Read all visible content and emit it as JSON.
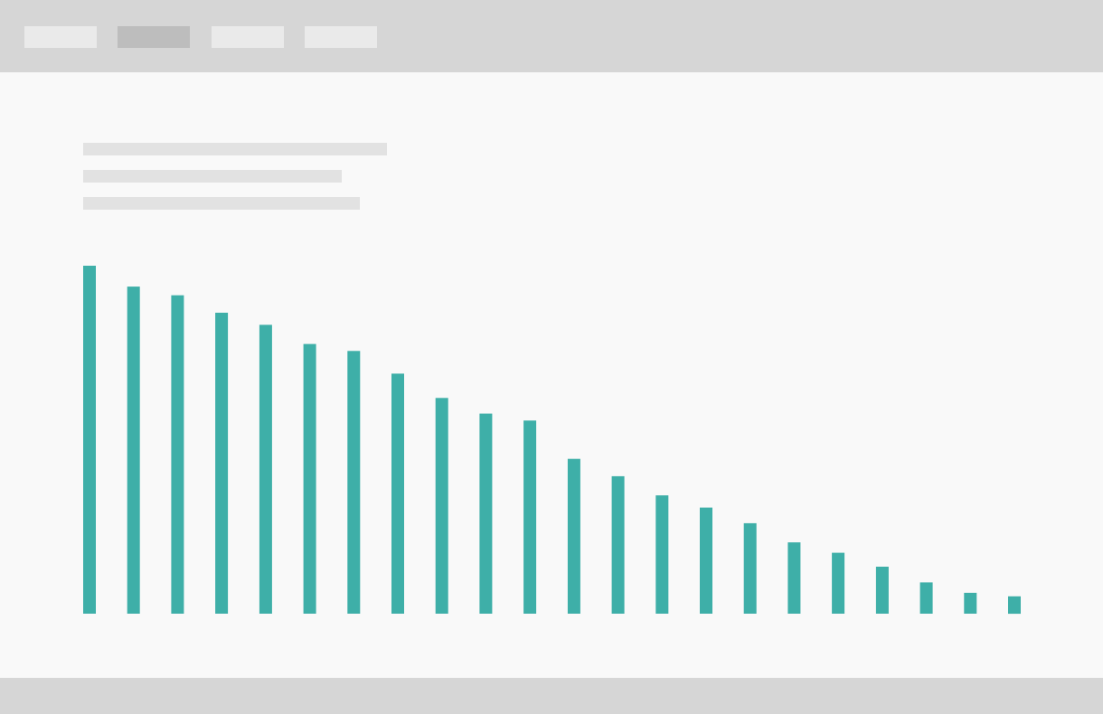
{
  "nav": {
    "tabs": [
      {
        "active": false
      },
      {
        "active": true
      },
      {
        "active": false
      },
      {
        "active": false
      }
    ]
  },
  "colors": {
    "topbar": "#d6d6d6",
    "tab": "#eaeaea",
    "tab_active": "#bdbdbd",
    "background": "#f9f9f9",
    "placeholder_text": "#e2e2e2",
    "bar": "#3eafa8",
    "footer": "#d6d6d6"
  },
  "chart_data": {
    "type": "bar",
    "title": "",
    "xlabel": "",
    "ylabel": "",
    "ylim": [
      0,
      100
    ],
    "grid": false,
    "series": [
      {
        "values": [
          100,
          94,
          91.5,
          86.5,
          83,
          77.5,
          75.5,
          69,
          62,
          57.5,
          55.5,
          44.5,
          39.5,
          34,
          30.5,
          26,
          20.5,
          17.5,
          13.5,
          9,
          6,
          5
        ]
      }
    ]
  }
}
